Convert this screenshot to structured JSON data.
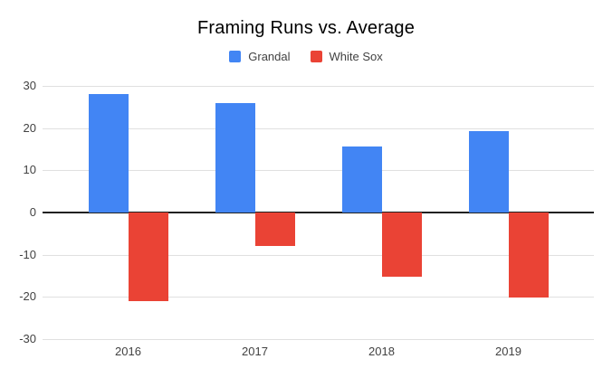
{
  "chart": {
    "title": "Framing Runs vs. Average"
  },
  "chart_data": {
    "type": "bar",
    "title": "Framing Runs vs. Average",
    "categories": [
      "2016",
      "2017",
      "2018",
      "2019"
    ],
    "series": [
      {
        "name": "Grandal",
        "color": "#4285F4",
        "values": [
          28,
          26,
          15.7,
          19.2
        ]
      },
      {
        "name": "White Sox",
        "color": "#EA4335",
        "values": [
          -21,
          -8,
          -15.2,
          -20.2
        ]
      }
    ],
    "xlabel": "",
    "ylabel": "",
    "ylim": [
      -30,
      30
    ],
    "yticks": [
      30,
      20,
      10,
      0,
      -10,
      -20,
      -30
    ],
    "grid": true,
    "legend_position": "top",
    "colors": {
      "grid": "#E0E0E0",
      "zero_line": "#212121",
      "axis_text": "#424242",
      "legend_text": "#424242",
      "title_text": "#000000",
      "background": "#FFFFFF"
    }
  }
}
